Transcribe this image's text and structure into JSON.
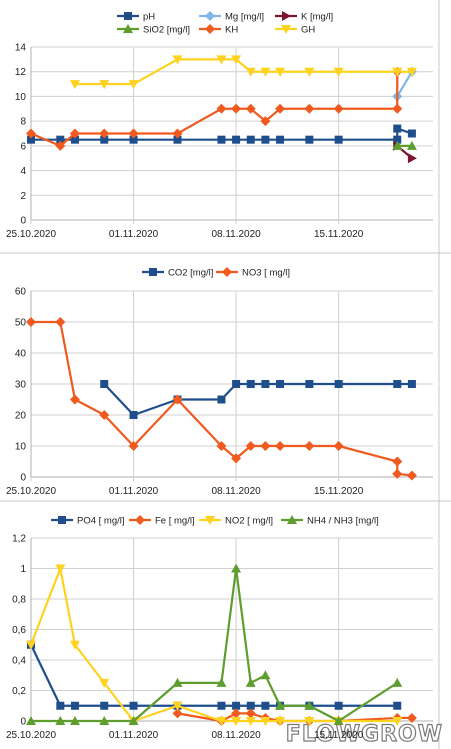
{
  "watermark": "FLOWGROW",
  "chart_data": [
    {
      "type": "line",
      "x_ticks": [
        "25.10.2020",
        "01.11.2020",
        "08.11.2020",
        "15.11.2020"
      ],
      "ylim": [
        0,
        14
      ],
      "y_ticks": [
        0,
        2,
        4,
        6,
        8,
        10,
        12,
        14
      ],
      "grid": true,
      "legend_position": "top",
      "series": [
        {
          "name": "pH",
          "color": "#1f4e8c",
          "marker": "square",
          "points": [
            [
              "25.10.2020",
              6.5
            ],
            [
              "27.10.2020",
              6.5
            ],
            [
              "28.10.2020",
              6.5
            ],
            [
              "30.10.2020",
              6.5
            ],
            [
              "01.11.2020",
              6.5
            ],
            [
              "04.11.2020",
              6.5
            ],
            [
              "07.11.2020",
              6.5
            ],
            [
              "08.11.2020",
              6.5
            ],
            [
              "09.11.2020",
              6.5
            ],
            [
              "10.11.2020",
              6.5
            ],
            [
              "11.11.2020",
              6.5
            ],
            [
              "13.11.2020",
              6.5
            ],
            [
              "15.11.2020",
              6.5
            ],
            [
              "19.11.2020",
              6.5
            ],
            [
              "19.11.2020",
              7.4
            ],
            [
              "20.11.2020",
              7.0
            ]
          ]
        },
        {
          "name": "Mg [mg/l]",
          "color": "#7fb8e8",
          "marker": "diamond",
          "points": [
            [
              "19.11.2020",
              10
            ],
            [
              "20.11.2020",
              12
            ]
          ]
        },
        {
          "name": "K [mg/l]",
          "color": "#7b1530",
          "marker": "triangle-right",
          "points": [
            [
              "19.11.2020",
              6
            ],
            [
              "20.11.2020",
              5
            ]
          ]
        },
        {
          "name": "SiO2 [mg/l]",
          "color": "#5e9e2e",
          "marker": "triangle-up",
          "points": [
            [
              "19.11.2020",
              6
            ],
            [
              "20.11.2020",
              6
            ]
          ]
        },
        {
          "name": "KH",
          "color": "#f05a1e",
          "marker": "diamond",
          "points": [
            [
              "25.10.2020",
              7
            ],
            [
              "27.10.2020",
              6
            ],
            [
              "28.10.2020",
              7
            ],
            [
              "30.10.2020",
              7
            ],
            [
              "01.11.2020",
              7
            ],
            [
              "04.11.2020",
              7
            ],
            [
              "07.11.2020",
              9
            ],
            [
              "08.11.2020",
              9
            ],
            [
              "09.11.2020",
              9
            ],
            [
              "10.11.2020",
              8
            ],
            [
              "11.11.2020",
              9
            ],
            [
              "13.11.2020",
              9
            ],
            [
              "15.11.2020",
              9
            ],
            [
              "19.11.2020",
              9
            ],
            [
              "19.11.2020",
              12
            ]
          ]
        },
        {
          "name": "GH",
          "color": "#ffd21f",
          "marker": "triangle-down",
          "points": [
            [
              "28.10.2020",
              11
            ],
            [
              "30.10.2020",
              11
            ],
            [
              "01.11.2020",
              11
            ],
            [
              "04.11.2020",
              13
            ],
            [
              "07.11.2020",
              13
            ],
            [
              "08.11.2020",
              13
            ],
            [
              "09.11.2020",
              12
            ],
            [
              "10.11.2020",
              12
            ],
            [
              "11.11.2020",
              12
            ],
            [
              "13.11.2020",
              12
            ],
            [
              "15.11.2020",
              12
            ],
            [
              "19.11.2020",
              12
            ],
            [
              "20.11.2020",
              12
            ]
          ]
        }
      ]
    },
    {
      "type": "line",
      "x_ticks": [
        "25.10.2020",
        "01.11.2020",
        "08.11.2020",
        "15.11.2020"
      ],
      "ylim": [
        0,
        60
      ],
      "y_ticks": [
        0,
        10,
        20,
        30,
        40,
        50,
        60
      ],
      "grid": true,
      "legend_position": "top",
      "series": [
        {
          "name": "CO2 [mg/l]",
          "color": "#1f4e8c",
          "marker": "square",
          "points": [
            [
              "30.10.2020",
              30
            ],
            [
              "01.11.2020",
              20
            ],
            [
              "04.11.2020",
              25
            ],
            [
              "07.11.2020",
              25
            ],
            [
              "08.11.2020",
              30
            ],
            [
              "09.11.2020",
              30
            ],
            [
              "10.11.2020",
              30
            ],
            [
              "11.11.2020",
              30
            ],
            [
              "13.11.2020",
              30
            ],
            [
              "15.11.2020",
              30
            ],
            [
              "19.11.2020",
              30
            ],
            [
              "20.11.2020",
              30
            ]
          ]
        },
        {
          "name": "NO3 [ mg/l]",
          "color": "#f05a1e",
          "marker": "diamond",
          "points": [
            [
              "25.10.2020",
              50
            ],
            [
              "27.10.2020",
              50
            ],
            [
              "28.10.2020",
              25
            ],
            [
              "30.10.2020",
              20
            ],
            [
              "01.11.2020",
              10
            ],
            [
              "04.11.2020",
              25
            ],
            [
              "07.11.2020",
              10
            ],
            [
              "08.11.2020",
              6
            ],
            [
              "09.11.2020",
              10
            ],
            [
              "10.11.2020",
              10
            ],
            [
              "11.11.2020",
              10
            ],
            [
              "13.11.2020",
              10
            ],
            [
              "15.11.2020",
              10
            ],
            [
              "19.11.2020",
              5
            ],
            [
              "19.11.2020",
              1
            ],
            [
              "20.11.2020",
              0.5
            ]
          ]
        }
      ]
    },
    {
      "type": "line",
      "x_ticks": [
        "25.10.2020",
        "01.11.2020",
        "08.11.2020",
        "15.11.2020"
      ],
      "ylim": [
        0,
        1.2
      ],
      "y_ticks": [
        "0",
        "0,2",
        "0,4",
        "0,6",
        "0,8",
        "1",
        "1,2"
      ],
      "y_tick_values": [
        0,
        0.2,
        0.4,
        0.6,
        0.8,
        1.0,
        1.2
      ],
      "grid": true,
      "legend_position": "top",
      "series": [
        {
          "name": "PO4 [ mg/l]",
          "color": "#1f4e8c",
          "marker": "square",
          "points": [
            [
              "25.10.2020",
              0.5
            ],
            [
              "27.10.2020",
              0.1
            ],
            [
              "28.10.2020",
              0.1
            ],
            [
              "30.10.2020",
              0.1
            ],
            [
              "01.11.2020",
              0.1
            ],
            [
              "04.11.2020",
              0.1
            ],
            [
              "07.11.2020",
              0.1
            ],
            [
              "08.11.2020",
              0.1
            ],
            [
              "09.11.2020",
              0.1
            ],
            [
              "10.11.2020",
              0.1
            ],
            [
              "11.11.2020",
              0.1
            ],
            [
              "13.11.2020",
              0.1
            ],
            [
              "15.11.2020",
              0.1
            ],
            [
              "19.11.2020",
              0.1
            ]
          ]
        },
        {
          "name": "Fe [ mg/l]",
          "color": "#f05a1e",
          "marker": "diamond",
          "points": [
            [
              "04.11.2020",
              0.05
            ],
            [
              "07.11.2020",
              0.0
            ],
            [
              "08.11.2020",
              0.05
            ],
            [
              "09.11.2020",
              0.05
            ],
            [
              "10.11.2020",
              0.02
            ],
            [
              "11.11.2020",
              0.0
            ],
            [
              "13.11.2020",
              0.0
            ],
            [
              "15.11.2020",
              0.0
            ],
            [
              "19.11.2020",
              0.02
            ],
            [
              "20.11.2020",
              0.02
            ]
          ]
        },
        {
          "name": "NO2 [ mg/l]",
          "color": "#ffd21f",
          "marker": "triangle-down",
          "points": [
            [
              "25.10.2020",
              0.5
            ],
            [
              "27.10.2020",
              1.0
            ],
            [
              "28.10.2020",
              0.5
            ],
            [
              "30.10.2020",
              0.25
            ],
            [
              "01.11.2020",
              0.0
            ],
            [
              "04.11.2020",
              0.1
            ],
            [
              "07.11.2020",
              0.0
            ],
            [
              "08.11.2020",
              0.0
            ],
            [
              "09.11.2020",
              0.0
            ],
            [
              "10.11.2020",
              0.0
            ],
            [
              "11.11.2020",
              0.0
            ],
            [
              "13.11.2020",
              0.0
            ],
            [
              "15.11.2020",
              0.0
            ],
            [
              "19.11.2020",
              0.0
            ]
          ]
        },
        {
          "name": "NH4 / NH3 [mg/l]",
          "color": "#5e9e2e",
          "marker": "triangle-up",
          "points": [
            [
              "25.10.2020",
              0.0
            ],
            [
              "27.10.2020",
              0.0
            ],
            [
              "28.10.2020",
              0.0
            ],
            [
              "30.10.2020",
              0.0
            ],
            [
              "01.11.2020",
              0.0
            ],
            [
              "04.11.2020",
              0.25
            ],
            [
              "07.11.2020",
              0.25
            ],
            [
              "08.11.2020",
              1.0
            ],
            [
              "09.11.2020",
              0.25
            ],
            [
              "10.11.2020",
              0.3
            ],
            [
              "11.11.2020",
              0.1
            ],
            [
              "13.11.2020",
              0.1
            ],
            [
              "15.11.2020",
              0.0
            ],
            [
              "19.11.2020",
              0.25
            ]
          ]
        }
      ]
    }
  ]
}
